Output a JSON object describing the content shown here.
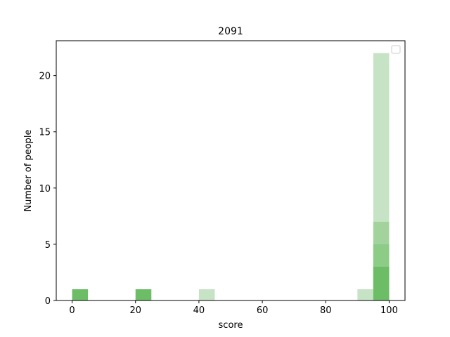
{
  "chart_data": {
    "type": "bar",
    "title": "2091",
    "xlabel": "score",
    "ylabel": "Number of people",
    "xlim": [
      -5,
      105
    ],
    "ylim": [
      0,
      23.1
    ],
    "xticks": [
      0,
      20,
      40,
      60,
      80,
      100
    ],
    "yticks": [
      0,
      5,
      10,
      15,
      20
    ],
    "bin_width": 5,
    "grid": false,
    "legend": "top-right",
    "series": [
      {
        "color": "#c7e3c5",
        "bins": [
          {
            "x0": 40,
            "x1": 45,
            "count": 1
          },
          {
            "x0": 90,
            "x1": 95,
            "count": 1
          },
          {
            "x0": 95,
            "x1": 100,
            "count": 22
          }
        ]
      },
      {
        "color": "#a3d39d",
        "bins": [
          {
            "x0": 95,
            "x1": 100,
            "count": 7
          }
        ]
      },
      {
        "color": "#8ccc86",
        "bins": [
          {
            "x0": 95,
            "x1": 100,
            "count": 5
          }
        ]
      },
      {
        "color": "#6dbd67",
        "bins": [
          {
            "x0": 0,
            "x1": 5,
            "count": 1
          },
          {
            "x0": 20,
            "x1": 25,
            "count": 1
          },
          {
            "x0": 95,
            "x1": 100,
            "count": 3
          }
        ]
      }
    ]
  }
}
